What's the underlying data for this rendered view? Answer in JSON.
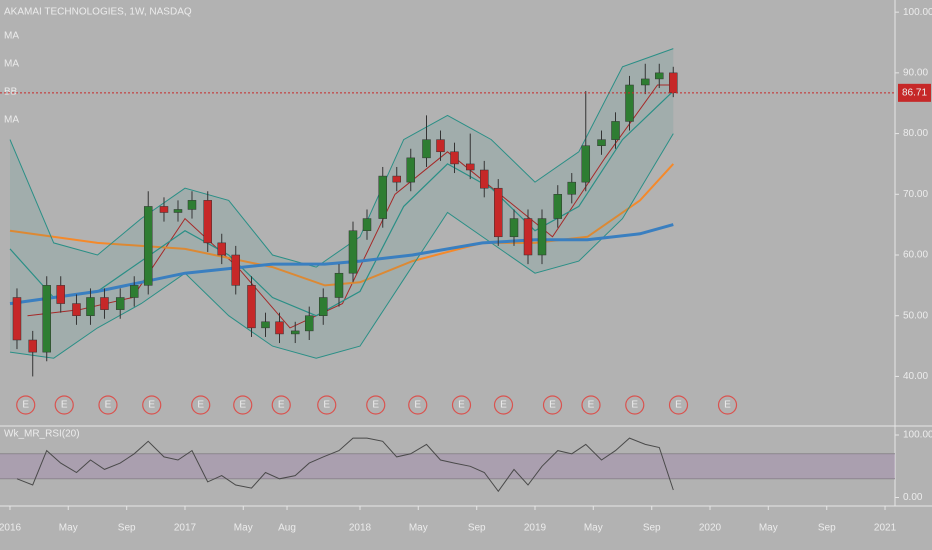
{
  "chart_data": [
    {
      "type": "candlestick",
      "title": "AKAMAI TECHNOLOGIES, 1W, NASDAQ",
      "x": [
        2016.04,
        2016.13,
        2016.21,
        2016.29,
        2016.38,
        2016.46,
        2016.54,
        2016.63,
        2016.71,
        2016.79,
        2016.88,
        2016.96,
        2017.04,
        2017.13,
        2017.21,
        2017.29,
        2017.38,
        2017.46,
        2017.54,
        2017.63,
        2017.71,
        2017.79,
        2017.88,
        2017.96,
        2018.04,
        2018.13,
        2018.21,
        2018.29,
        2018.38,
        2018.46,
        2018.54,
        2018.63,
        2018.71,
        2018.79,
        2018.88,
        2018.96,
        2019.04,
        2019.13,
        2019.21,
        2019.29,
        2019.38,
        2019.46,
        2019.54,
        2019.63,
        2019.71,
        2019.79
      ],
      "open": [
        53,
        46,
        44,
        55,
        52,
        50,
        53,
        51,
        53,
        55,
        68,
        67,
        67.5,
        69,
        62,
        60,
        55,
        48,
        49,
        47,
        47.5,
        50,
        53,
        57,
        64,
        66,
        73,
        72,
        76,
        79,
        77,
        75,
        74,
        71,
        63,
        66,
        60,
        66,
        70,
        72,
        78,
        79,
        82,
        88,
        89,
        90
      ],
      "high": [
        54.5,
        47.5,
        56.5,
        56.5,
        53.5,
        54.5,
        54.5,
        54.5,
        56.5,
        70.5,
        69.5,
        69,
        70.5,
        70.5,
        63.5,
        61.5,
        56.5,
        50.5,
        50.5,
        49,
        51.5,
        54.5,
        58.5,
        65.5,
        67.5,
        74.5,
        74.5,
        77.5,
        83,
        80.5,
        78.5,
        80,
        75.5,
        72.5,
        67.5,
        67.5,
        67.5,
        71.5,
        73.5,
        87,
        80.5,
        83.5,
        89.5,
        91.5,
        91.5,
        91
      ],
      "low": [
        44.5,
        40,
        42.5,
        50.5,
        48.5,
        48.5,
        49.5,
        49.5,
        51.5,
        53.5,
        65.5,
        65.5,
        66,
        60.5,
        58.5,
        53.5,
        46.5,
        46.5,
        45.5,
        45.5,
        46,
        48.5,
        51.5,
        55.5,
        62.5,
        64.5,
        70.5,
        70.5,
        74.5,
        75.5,
        73.5,
        72.5,
        69.5,
        61.5,
        61.5,
        58.5,
        58.5,
        64.5,
        68.5,
        70.5,
        76.5,
        77.5,
        80.5,
        86.5,
        87.5,
        86
      ],
      "close": [
        46,
        44,
        55,
        52,
        50,
        53,
        51,
        53,
        55,
        68,
        67,
        67.5,
        69,
        62,
        60,
        55,
        48,
        49,
        47,
        47.5,
        50,
        53,
        57,
        64,
        66,
        73,
        72,
        76,
        79,
        77,
        75,
        74,
        71,
        63,
        66,
        60,
        66,
        70,
        72,
        78,
        79,
        82,
        88,
        89,
        90,
        86.71
      ],
      "up_color": "#2e7d32",
      "down_color": "#c62828",
      "last_price": 86.71,
      "overlays": [
        {
          "name": "MA",
          "color": "#b71c1c",
          "x": [
            2016.1,
            2016.4,
            2016.7,
            2017.0,
            2017.3,
            2017.6,
            2017.9,
            2018.2,
            2018.5,
            2018.8,
            2019.1,
            2019.4,
            2019.7,
            2019.79
          ],
          "values": [
            50,
            51,
            53,
            66,
            58,
            48,
            52,
            70,
            77,
            70,
            63,
            76,
            88,
            88
          ]
        },
        {
          "name": "MA",
          "color": "#f5892a",
          "x": [
            2016.0,
            2016.5,
            2017.0,
            2017.5,
            2017.8,
            2018.0,
            2018.3,
            2018.7,
            2019.0,
            2019.3,
            2019.6,
            2019.79
          ],
          "values": [
            64,
            62,
            61,
            58,
            55,
            55.5,
            59,
            62,
            62,
            63,
            69,
            75
          ]
        },
        {
          "name": "BB",
          "color": "#2a8f86",
          "x": [
            2016.0,
            2016.25,
            2016.5,
            2016.75,
            2017.0,
            2017.25,
            2017.5,
            2017.75,
            2018.0,
            2018.25,
            2018.5,
            2018.75,
            2019.0,
            2019.25,
            2019.5,
            2019.79
          ],
          "upper": [
            79,
            62,
            60,
            66,
            71,
            69,
            60,
            58,
            63,
            79,
            83,
            79,
            72,
            77,
            91,
            94
          ],
          "basis": [
            61,
            53,
            54,
            59,
            64,
            60,
            53,
            50,
            54,
            68,
            75,
            71,
            64,
            68,
            79,
            87
          ],
          "lower": [
            44,
            43,
            48,
            52,
            57,
            50,
            45,
            43,
            45,
            56,
            67,
            62,
            57,
            59,
            66,
            80
          ]
        },
        {
          "name": "MA",
          "color": "#3a7fc0",
          "x": [
            2016.0,
            2016.5,
            2017.0,
            2017.5,
            2017.8,
            2018.0,
            2018.3,
            2018.7,
            2019.0,
            2019.3,
            2019.6,
            2019.79
          ],
          "values": [
            52,
            54,
            57,
            58.5,
            58.5,
            59,
            60,
            62,
            62.5,
            62.5,
            63.5,
            65
          ]
        }
      ],
      "earnings": {
        "label": "E",
        "x": [
          2016.09,
          2016.31,
          2016.56,
          2016.81,
          2017.09,
          2017.33,
          2017.55,
          2017.81,
          2018.09,
          2018.33,
          2018.58,
          2018.82,
          2019.1,
          2019.32,
          2019.57,
          2019.82,
          2020.1
        ]
      },
      "ylim": [
        32,
        102
      ],
      "yticks": [
        {
          "value": 40,
          "label": "40.00"
        },
        {
          "value": 50,
          "label": "50.00"
        },
        {
          "value": 60,
          "label": "60.00"
        },
        {
          "value": 70,
          "label": "70.00"
        },
        {
          "value": 80,
          "label": "80.00"
        },
        {
          "value": 90,
          "label": "90.00"
        },
        {
          "value": 100,
          "label": "100.00"
        }
      ],
      "xlim": [
        2015.943,
        2021.057
      ],
      "xticks": [
        {
          "value": 2016,
          "label": "2016"
        },
        {
          "value": 2016.333,
          "label": "May"
        },
        {
          "value": 2016.667,
          "label": "Sep"
        },
        {
          "value": 2017,
          "label": "2017"
        },
        {
          "value": 2017.333,
          "label": "May"
        },
        {
          "value": 2017.583,
          "label": "Aug"
        },
        {
          "value": 2018,
          "label": "2018"
        },
        {
          "value": 2018.333,
          "label": "May"
        },
        {
          "value": 2018.667,
          "label": "Sep"
        },
        {
          "value": 2019,
          "label": "2019"
        },
        {
          "value": 2019.333,
          "label": "May"
        },
        {
          "value": 2019.667,
          "label": "Sep"
        },
        {
          "value": 2020,
          "label": "2020"
        },
        {
          "value": 2020.333,
          "label": "May"
        },
        {
          "value": 2020.667,
          "label": "Sep"
        },
        {
          "value": 2021,
          "label": "2021"
        }
      ]
    },
    {
      "type": "line",
      "title": "Wk_MR_RSI(20)",
      "x": [
        2016.04,
        2016.13,
        2016.21,
        2016.29,
        2016.38,
        2016.46,
        2016.54,
        2016.63,
        2016.71,
        2016.79,
        2016.88,
        2016.96,
        2017.04,
        2017.13,
        2017.21,
        2017.29,
        2017.38,
        2017.46,
        2017.54,
        2017.63,
        2017.71,
        2017.79,
        2017.88,
        2017.96,
        2018.04,
        2018.13,
        2018.21,
        2018.29,
        2018.38,
        2018.46,
        2018.54,
        2018.63,
        2018.71,
        2018.79,
        2018.88,
        2018.96,
        2019.04,
        2019.13,
        2019.21,
        2019.29,
        2019.38,
        2019.46,
        2019.54,
        2019.63,
        2019.71,
        2019.79
      ],
      "series": [
        {
          "name": "Wk_MR_RSI(20)",
          "color": "#4a4a4a",
          "values": [
            30,
            20,
            75,
            55,
            40,
            60,
            45,
            55,
            70,
            90,
            65,
            60,
            75,
            25,
            35,
            20,
            15,
            40,
            30,
            35,
            55,
            65,
            75,
            95,
            95,
            90,
            65,
            70,
            85,
            60,
            55,
            50,
            40,
            10,
            45,
            20,
            50,
            75,
            70,
            85,
            60,
            75,
            95,
            85,
            80,
            12
          ]
        }
      ],
      "bands": [
        30,
        70
      ],
      "ylim": [
        -12,
        108
      ],
      "yticks": [
        {
          "value": 0,
          "label": "0.00"
        },
        {
          "value": 100,
          "label": "100.00"
        }
      ]
    }
  ]
}
